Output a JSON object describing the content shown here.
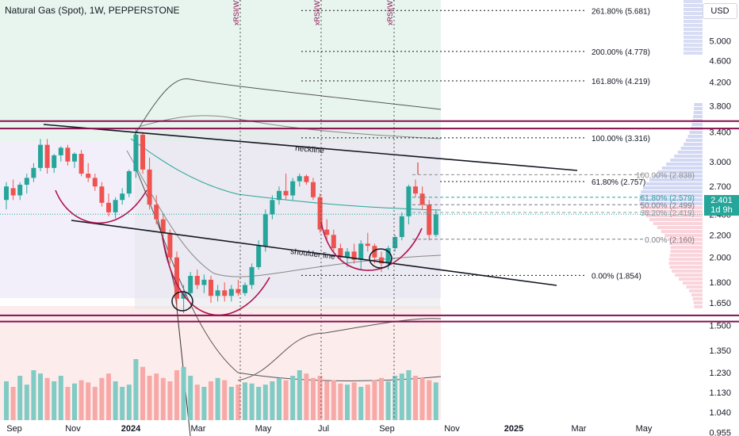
{
  "header": {
    "title": "Natural Gas (Spot), 1W, PEPPERSTONE"
  },
  "axis": {
    "currency": "USD"
  },
  "last_price": {
    "value": "2.401",
    "countdown": "1d 9h",
    "color": "#26a69a"
  },
  "colors": {
    "up": "#26a69a",
    "down": "#ef5350",
    "pattern": "#b0134f",
    "fib": "#131722"
  },
  "chart_data": {
    "type": "candlestick",
    "title": "Natural Gas (Spot), 1W, PEPPERSTONE",
    "y_scale": "log",
    "ylim": [
      0.94,
      5.9
    ],
    "price_ticks": [
      "5.000",
      "4.600",
      "4.200",
      "3.800",
      "3.400",
      "3.000",
      "2.700",
      "2.400",
      "2.200",
      "2.000",
      "1.800",
      "1.650",
      "1.500",
      "1.350",
      "1.230",
      "1.130",
      "1.040",
      "0.955"
    ],
    "x_tick_labels": [
      "Sep",
      "Nov",
      "2024",
      "Mar",
      "May",
      "Jul",
      "Sep",
      "Nov",
      "2025",
      "Mar",
      "May"
    ],
    "candles": [
      {
        "o": 2.55,
        "h": 2.75,
        "l": 2.45,
        "c": 2.7
      },
      {
        "o": 2.68,
        "h": 2.78,
        "l": 2.55,
        "c": 2.6
      },
      {
        "o": 2.6,
        "h": 2.75,
        "l": 2.55,
        "c": 2.72
      },
      {
        "o": 2.72,
        "h": 2.85,
        "l": 2.62,
        "c": 2.8
      },
      {
        "o": 2.8,
        "h": 2.98,
        "l": 2.75,
        "c": 2.92
      },
      {
        "o": 2.92,
        "h": 3.3,
        "l": 2.88,
        "c": 3.22
      },
      {
        "o": 3.22,
        "h": 3.3,
        "l": 2.85,
        "c": 2.92
      },
      {
        "o": 2.92,
        "h": 3.1,
        "l": 2.86,
        "c": 3.08
      },
      {
        "o": 3.08,
        "h": 3.2,
        "l": 3.0,
        "c": 3.18
      },
      {
        "o": 3.18,
        "h": 3.22,
        "l": 2.95,
        "c": 3.0
      },
      {
        "o": 3.0,
        "h": 3.12,
        "l": 2.92,
        "c": 3.1
      },
      {
        "o": 3.1,
        "h": 3.15,
        "l": 2.82,
        "c": 2.85
      },
      {
        "o": 2.85,
        "h": 2.98,
        "l": 2.75,
        "c": 2.8
      },
      {
        "o": 2.8,
        "h": 2.85,
        "l": 2.65,
        "c": 2.7
      },
      {
        "o": 2.7,
        "h": 2.75,
        "l": 2.48,
        "c": 2.52
      },
      {
        "o": 2.52,
        "h": 2.62,
        "l": 2.38,
        "c": 2.42
      },
      {
        "o": 2.42,
        "h": 2.58,
        "l": 2.36,
        "c": 2.55
      },
      {
        "o": 2.55,
        "h": 2.68,
        "l": 2.5,
        "c": 2.62
      },
      {
        "o": 2.62,
        "h": 2.9,
        "l": 2.58,
        "c": 2.88
      },
      {
        "o": 2.88,
        "h": 3.45,
        "l": 2.8,
        "c": 3.36
      },
      {
        "o": 3.36,
        "h": 3.4,
        "l": 2.85,
        "c": 2.9
      },
      {
        "o": 2.9,
        "h": 3.05,
        "l": 2.45,
        "c": 2.5
      },
      {
        "o": 2.5,
        "h": 2.6,
        "l": 2.3,
        "c": 2.35
      },
      {
        "o": 2.35,
        "h": 2.4,
        "l": 2.18,
        "c": 2.22
      },
      {
        "o": 2.22,
        "h": 2.25,
        "l": 1.95,
        "c": 2.0
      },
      {
        "o": 2.0,
        "h": 2.05,
        "l": 1.62,
        "c": 1.68
      },
      {
        "o": 1.68,
        "h": 1.78,
        "l": 1.58,
        "c": 1.72
      },
      {
        "o": 1.72,
        "h": 1.88,
        "l": 1.7,
        "c": 1.85
      },
      {
        "o": 1.85,
        "h": 1.9,
        "l": 1.75,
        "c": 1.78
      },
      {
        "o": 1.78,
        "h": 1.86,
        "l": 1.72,
        "c": 1.82
      },
      {
        "o": 1.82,
        "h": 1.85,
        "l": 1.65,
        "c": 1.7
      },
      {
        "o": 1.7,
        "h": 1.78,
        "l": 1.66,
        "c": 1.74
      },
      {
        "o": 1.74,
        "h": 1.8,
        "l": 1.66,
        "c": 1.7
      },
      {
        "o": 1.7,
        "h": 1.78,
        "l": 1.66,
        "c": 1.75
      },
      {
        "o": 1.75,
        "h": 1.82,
        "l": 1.7,
        "c": 1.72
      },
      {
        "o": 1.72,
        "h": 1.8,
        "l": 1.7,
        "c": 1.78
      },
      {
        "o": 1.78,
        "h": 1.95,
        "l": 1.75,
        "c": 1.92
      },
      {
        "o": 1.92,
        "h": 2.15,
        "l": 1.9,
        "c": 2.1
      },
      {
        "o": 2.1,
        "h": 2.45,
        "l": 2.05,
        "c": 2.4
      },
      {
        "o": 2.4,
        "h": 2.6,
        "l": 2.35,
        "c": 2.55
      },
      {
        "o": 2.55,
        "h": 2.7,
        "l": 2.5,
        "c": 2.65
      },
      {
        "o": 2.65,
        "h": 2.85,
        "l": 2.55,
        "c": 2.6
      },
      {
        "o": 2.6,
        "h": 2.8,
        "l": 2.55,
        "c": 2.76
      },
      {
        "o": 2.76,
        "h": 2.85,
        "l": 2.7,
        "c": 2.82
      },
      {
        "o": 2.82,
        "h": 2.84,
        "l": 2.72,
        "c": 2.75
      },
      {
        "o": 2.75,
        "h": 2.8,
        "l": 2.55,
        "c": 2.58
      },
      {
        "o": 2.58,
        "h": 2.62,
        "l": 2.22,
        "c": 2.25
      },
      {
        "o": 2.25,
        "h": 2.35,
        "l": 2.15,
        "c": 2.2
      },
      {
        "o": 2.2,
        "h": 2.25,
        "l": 2.05,
        "c": 2.08
      },
      {
        "o": 2.08,
        "h": 2.12,
        "l": 1.98,
        "c": 2.0
      },
      {
        "o": 2.0,
        "h": 2.08,
        "l": 1.92,
        "c": 2.05
      },
      {
        "o": 2.05,
        "h": 2.12,
        "l": 1.95,
        "c": 1.98
      },
      {
        "o": 1.98,
        "h": 2.15,
        "l": 1.9,
        "c": 2.12
      },
      {
        "o": 2.12,
        "h": 2.22,
        "l": 2.05,
        "c": 2.1
      },
      {
        "o": 2.1,
        "h": 2.12,
        "l": 1.95,
        "c": 2.0
      },
      {
        "o": 2.0,
        "h": 2.05,
        "l": 1.88,
        "c": 1.95
      },
      {
        "o": 1.95,
        "h": 2.1,
        "l": 1.9,
        "c": 2.08
      },
      {
        "o": 2.08,
        "h": 2.2,
        "l": 2.05,
        "c": 2.18
      },
      {
        "o": 2.18,
        "h": 2.42,
        "l": 2.15,
        "c": 2.38
      },
      {
        "o": 2.38,
        "h": 2.72,
        "l": 2.3,
        "c": 2.7
      },
      {
        "o": 2.7,
        "h": 2.78,
        "l": 2.58,
        "c": 2.62
      },
      {
        "o": 2.62,
        "h": 2.7,
        "l": 2.45,
        "c": 2.5
      },
      {
        "o": 2.5,
        "h": 2.55,
        "l": 2.15,
        "c": 2.2
      },
      {
        "o": 2.2,
        "h": 2.45,
        "l": 2.18,
        "c": 2.4
      }
    ],
    "volume": [
      0.35,
      0.3,
      0.4,
      0.32,
      0.45,
      0.42,
      0.38,
      0.35,
      0.4,
      0.3,
      0.33,
      0.36,
      0.34,
      0.3,
      0.38,
      0.42,
      0.35,
      0.3,
      0.32,
      0.55,
      0.48,
      0.4,
      0.42,
      0.38,
      0.35,
      0.45,
      0.48,
      0.4,
      0.32,
      0.3,
      0.35,
      0.38,
      0.36,
      0.3,
      0.32,
      0.34,
      0.33,
      0.3,
      0.32,
      0.35,
      0.38,
      0.36,
      0.4,
      0.45,
      0.42,
      0.38,
      0.4,
      0.35,
      0.36,
      0.33,
      0.32,
      0.34,
      0.3,
      0.32,
      0.36,
      0.38,
      0.35,
      0.4,
      0.42,
      0.45,
      0.4,
      0.38,
      0.36,
      0.34
    ],
    "fib_levels": [
      {
        "label": "261.80% (5.681)",
        "price": 5.681
      },
      {
        "label": "200.00% (4.778)",
        "price": 4.778
      },
      {
        "label": "161.80% (4.219)",
        "price": 4.219
      },
      {
        "label": "100.00% (3.316)",
        "price": 3.316
      },
      {
        "label": "61.80% (2.757)",
        "price": 2.757
      },
      {
        "label": "0.00% (1.854)",
        "price": 1.854
      }
    ],
    "fib_small": [
      {
        "label": "100.00% (2.838)",
        "price": 2.838,
        "color": "#8c8c8c"
      },
      {
        "label": "61.80% (2.579)",
        "price": 2.579,
        "color": "#26a69a"
      },
      {
        "label": "50.00% (2.499)",
        "price": 2.499,
        "color": "#787b86"
      },
      {
        "label": "38.20% (2.419)",
        "price": 2.419,
        "color": "#9598a1"
      },
      {
        "label": "0.00% (2.160)",
        "price": 2.16,
        "color": "#787b86"
      }
    ],
    "horizontal_levels": [
      3.56,
      3.45,
      1.565,
      1.525
    ],
    "annotations": [
      "neckline",
      "shoulder line",
      "xRSI(W)",
      "xRSI(W)",
      "xRSI(W)"
    ]
  }
}
